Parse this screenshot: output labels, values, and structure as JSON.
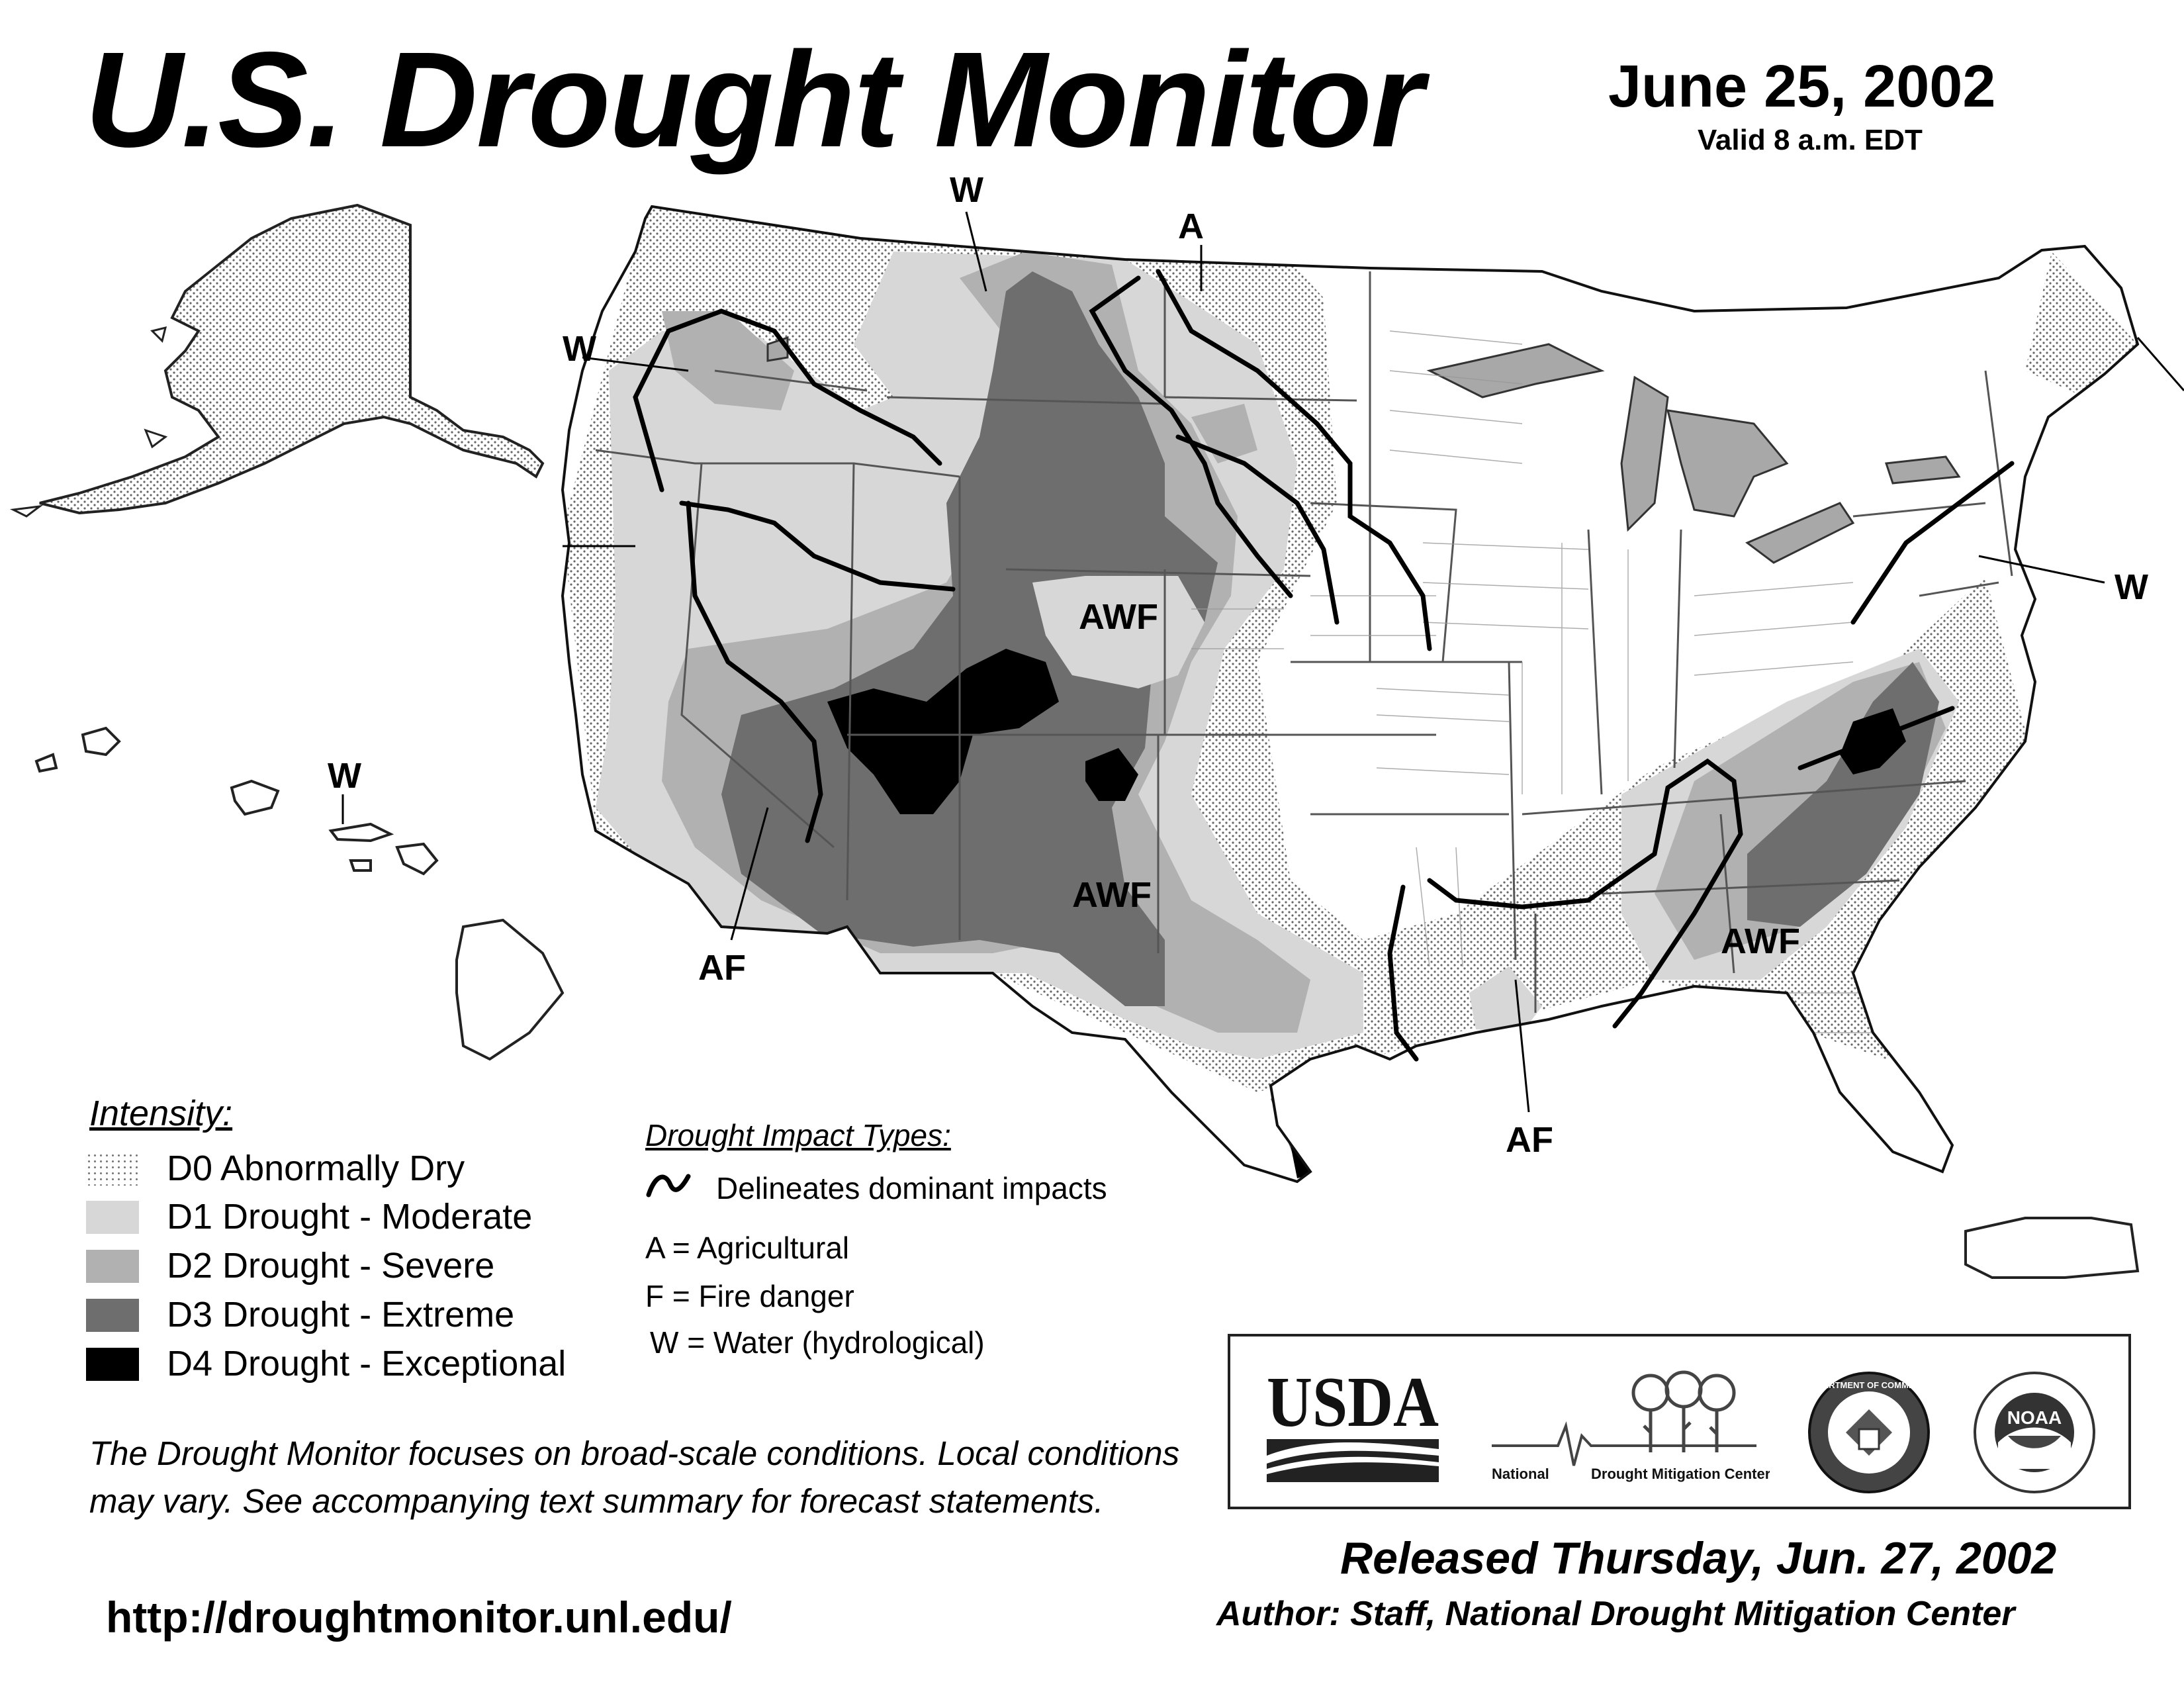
{
  "header": {
    "title": "U.S. Drought Monitor",
    "date": "June 25, 2002",
    "valid": "Valid 8 a.m. EDT"
  },
  "map": {
    "impact_labels": {
      "w_northwest": "W",
      "w_montana": "W",
      "a_dakotas": "A",
      "awf_colorado": "AWF",
      "awf_new_mexico": "AWF",
      "awf_southeast": "AWF",
      "af_arizona": "AF",
      "af_louisiana": "AF",
      "w_northeast": "W",
      "w_hawaii": "W"
    },
    "colors": {
      "D0": "#f4f4f4",
      "D1": "#d7d7d7",
      "D2": "#b1b1b1",
      "D3": "#6e6e6e",
      "D4": "#000000",
      "water": "#a8a8a8",
      "borders": "#555555"
    }
  },
  "legend": {
    "title": "Intensity:",
    "items": [
      {
        "code": "D0",
        "label": "D0 Abnormally Dry",
        "color": "#f0f0f0"
      },
      {
        "code": "D1",
        "label": "D1 Drought - Moderate",
        "color": "#d7d7d7"
      },
      {
        "code": "D2",
        "label": "D2 Drought - Severe",
        "color": "#b1b1b1"
      },
      {
        "code": "D3",
        "label": "D3 Drought - Extreme",
        "color": "#6e6e6e"
      },
      {
        "code": "D4",
        "label": "D4 Drought - Exceptional",
        "color": "#000000"
      }
    ]
  },
  "impacts": {
    "title": "Drought Impact Types:",
    "delineates": "Delineates dominant impacts",
    "types": [
      "A = Agricultural",
      "F = Fire danger",
      "W = Water (hydrological)"
    ]
  },
  "disclaimer": "The Drought Monitor focuses on broad-scale conditions. Local conditions may vary. See accompanying text summary for forecast statements.",
  "url": "http://droughtmonitor.unl.edu/",
  "logos": {
    "usda": "USDA",
    "ndmc_left": "National",
    "ndmc_right": "Drought Mitigation Center",
    "commerce_seal": "DEPARTMENT OF COMMERCE",
    "noaa": "NOAA"
  },
  "footer": {
    "released": "Released Thursday, Jun. 27, 2002",
    "author": "Author: Staff, National Drought Mitigation Center"
  }
}
